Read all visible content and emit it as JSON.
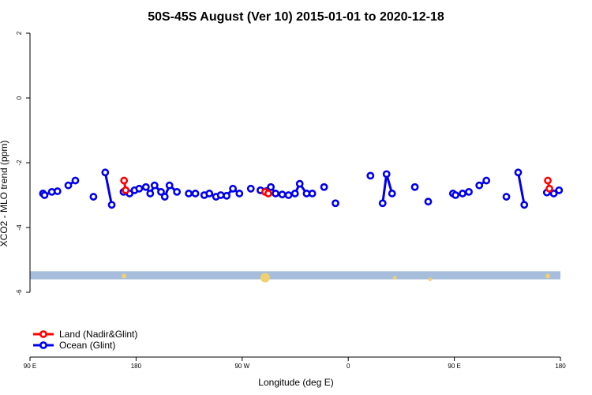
{
  "chart_data": {
    "type": "line",
    "title": "50S-45S August (Ver 10)   2015-01-01 to 2020-12-18",
    "xlabel": "Longitude (deg E)",
    "ylabel": "XCO2 - MLO trend (ppm)",
    "xlim": [
      90,
      360
    ],
    "ylim": [
      -8,
      2
    ],
    "x_ticks": [
      {
        "value": 90,
        "label": "90 E"
      },
      {
        "value": 144,
        "label": "180"
      },
      {
        "value": 198,
        "label": "90 W"
      },
      {
        "value": 252,
        "label": "0"
      },
      {
        "value": 306,
        "label": "90 E"
      },
      {
        "value": 360,
        "label": "180"
      }
    ],
    "y_ticks": [
      {
        "value": 2,
        "label": "2"
      },
      {
        "value": 0,
        "label": "0"
      },
      {
        "value": -2,
        "label": "-2"
      },
      {
        "value": -4,
        "label": "-4"
      },
      {
        "value": -6,
        "label": "-6"
      }
    ],
    "legend_position": "bottom-left",
    "band": {
      "y_from": -5.6,
      "y_to": -5.35,
      "color": "#a6bddb"
    },
    "band_markers": {
      "color": "#f0d070",
      "points": [
        {
          "x": 137.9,
          "y": -5.5,
          "size": 1
        },
        {
          "x": 209.7,
          "y": -5.55,
          "size": 3
        },
        {
          "x": 275.7,
          "y": -5.55,
          "size": 0.5
        },
        {
          "x": 293.6,
          "y": -5.6,
          "size": 0.5
        },
        {
          "x": 353.6,
          "y": -5.5,
          "size": 1
        }
      ]
    },
    "series": [
      {
        "name": "Land (Nadir&Glint)",
        "color": "#ff0000",
        "segments": [
          [
            [
              137.9,
              -2.55
            ],
            [
              138.7,
              -2.85
            ]
          ],
          [
            [
              209.7,
              -2.9
            ],
            [
              211.3,
              -2.95
            ]
          ],
          [
            [
              353.6,
              -2.55
            ],
            [
              354.4,
              -2.8
            ]
          ]
        ]
      },
      {
        "name": "Ocean (Glint)",
        "color": "#0000ee",
        "segments": [
          [
            [
              96.6,
              -2.95
            ],
            [
              97.4,
              -3.0
            ],
            [
              101.1,
              -2.9
            ],
            [
              104.0,
              -2.88
            ]
          ],
          [
            [
              109.5,
              -2.7
            ],
            [
              113.1,
              -2.55
            ]
          ],
          [
            [
              122.3,
              -3.05
            ]
          ],
          [
            [
              128.3,
              -2.3
            ],
            [
              131.6,
              -3.3
            ]
          ],
          [
            [
              137.6,
              -2.9
            ],
            [
              140.7,
              -2.95
            ],
            [
              143.2,
              -2.85
            ],
            [
              145.6,
              -2.8
            ],
            [
              149.0,
              -2.75
            ],
            [
              151.2,
              -2.95
            ],
            [
              153.4,
              -2.7
            ],
            [
              156.7,
              -2.9
            ],
            [
              158.6,
              -3.05
            ],
            [
              161.0,
              -2.7
            ],
            [
              164.8,
              -2.9
            ]
          ],
          [
            [
              170.8,
              -2.95
            ],
            [
              174.2,
              -2.95
            ]
          ],
          [
            [
              178.7,
              -3.0
            ],
            [
              181.3,
              -2.95
            ],
            [
              184.7,
              -3.05
            ],
            [
              187.1,
              -3.0
            ],
            [
              190.1,
              -3.02
            ],
            [
              193.3,
              -2.8
            ],
            [
              196.6,
              -2.95
            ]
          ],
          [
            [
              202.4,
              -2.8
            ]
          ],
          [
            [
              207.3,
              -2.85
            ],
            [
              212.6,
              -2.75
            ],
            [
              215.0,
              -2.95
            ],
            [
              218.4,
              -2.98
            ],
            [
              221.6,
              -3.0
            ],
            [
              224.9,
              -2.95
            ],
            [
              227.3,
              -2.65
            ],
            [
              230.8,
              -2.95
            ],
            [
              233.7,
              -2.95
            ]
          ],
          [
            [
              239.7,
              -2.75
            ]
          ],
          [
            [
              245.5,
              -3.25
            ]
          ],
          [
            [
              263.3,
              -2.4
            ]
          ],
          [
            [
              269.5,
              -3.25
            ],
            [
              271.5,
              -2.35
            ],
            [
              274.3,
              -2.95
            ]
          ],
          [
            [
              285.9,
              -2.75
            ]
          ],
          [
            [
              292.7,
              -3.2
            ]
          ],
          [
            [
              305.3,
              -2.95
            ],
            [
              306.6,
              -3.0
            ],
            [
              310.2,
              -2.95
            ],
            [
              313.4,
              -2.9
            ]
          ],
          [
            [
              318.7,
              -2.7
            ],
            [
              322.3,
              -2.55
            ]
          ],
          [
            [
              332.5,
              -3.05
            ]
          ],
          [
            [
              338.5,
              -2.3
            ],
            [
              341.6,
              -3.3
            ]
          ],
          [
            [
              353.1,
              -2.92
            ],
            [
              356.6,
              -2.95
            ],
            [
              359.3,
              -2.85
            ]
          ]
        ]
      }
    ]
  }
}
